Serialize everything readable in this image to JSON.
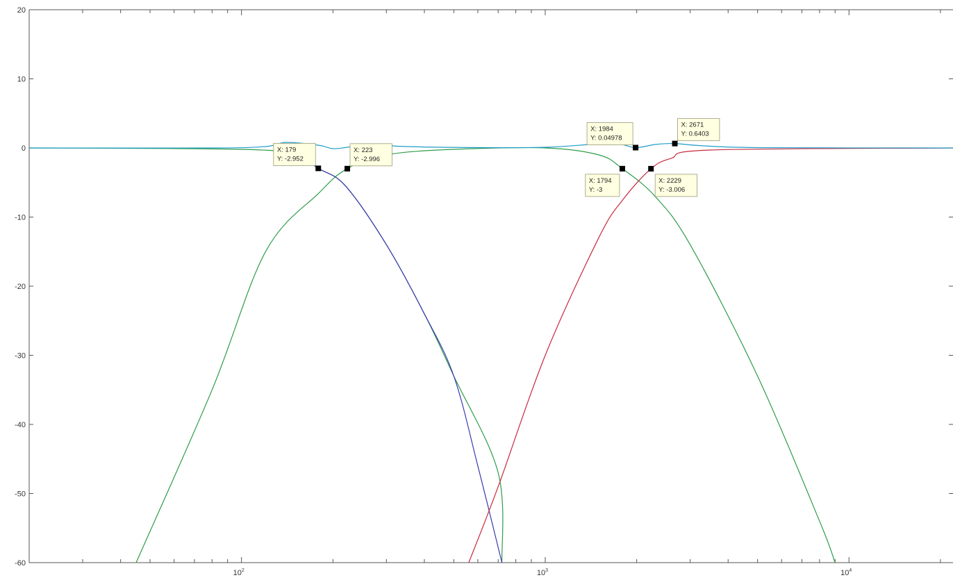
{
  "chart_data": {
    "type": "line",
    "title": "",
    "xlabel": "",
    "ylabel": "",
    "xscale": "log",
    "xlim": [
      20,
      22000
    ],
    "ylim": [
      -60,
      20
    ],
    "grid": false,
    "legend": "none",
    "y_ticks": [
      20,
      10,
      0,
      -10,
      -20,
      -30,
      -40,
      -50,
      -60
    ],
    "x_ticks": [
      {
        "value": 100,
        "base": "10",
        "exp": "2"
      },
      {
        "value": 1000,
        "base": "10",
        "exp": "3"
      },
      {
        "value": 10000,
        "base": "10",
        "exp": "4"
      }
    ],
    "series": [
      {
        "color": "#2e9b4a",
        "points": [
          [
            20,
            0
          ],
          [
            100,
            -0.2
          ],
          [
            150,
            -1.0
          ],
          [
            179,
            -2.952
          ],
          [
            220,
            -5.5
          ],
          [
            300,
            -14
          ],
          [
            400,
            -24
          ],
          [
            500,
            -33
          ],
          [
            700,
            -47
          ],
          [
            720,
            -60
          ]
        ]
      },
      {
        "color": "#2e9b4a",
        "points": [
          [
            45,
            -60
          ],
          [
            80,
            -35
          ],
          [
            120,
            -15
          ],
          [
            180,
            -6.5
          ],
          [
            223,
            -2.996
          ],
          [
            300,
            -1.0
          ],
          [
            500,
            -0.2
          ],
          [
            1000,
            0
          ],
          [
            1500,
            -1.0
          ],
          [
            1794,
            -3
          ],
          [
            2300,
            -7
          ],
          [
            3000,
            -14
          ],
          [
            5000,
            -33
          ],
          [
            8000,
            -54
          ],
          [
            9000,
            -60
          ]
        ]
      },
      {
        "color": "#3a3ab0",
        "points": [
          [
            130,
            0
          ],
          [
            150,
            -0.7
          ],
          [
            179,
            -2.952
          ],
          [
            220,
            -5.5
          ],
          [
            300,
            -14
          ],
          [
            400,
            -24
          ],
          [
            500,
            -33
          ],
          [
            600,
            -46
          ],
          [
            720,
            -60
          ]
        ]
      },
      {
        "color": "#c8283c",
        "points": [
          [
            560,
            -60
          ],
          [
            700,
            -49
          ],
          [
            1000,
            -30
          ],
          [
            1500,
            -13
          ],
          [
            1800,
            -7.5
          ],
          [
            2229,
            -3.006
          ],
          [
            2600,
            -1.5
          ],
          [
            3500,
            -0.3
          ],
          [
            22000,
            0
          ]
        ]
      },
      {
        "color": "#1e9cc8",
        "points": [
          [
            20,
            0
          ],
          [
            80,
            0
          ],
          [
            120,
            0.2
          ],
          [
            140,
            0.8
          ],
          [
            179,
            0.4
          ],
          [
            200,
            -0.1
          ],
          [
            223,
            0.1
          ],
          [
            260,
            0.5
          ],
          [
            350,
            0.2
          ],
          [
            600,
            0.05
          ],
          [
            1000,
            0.1
          ],
          [
            1400,
            0.5
          ],
          [
            1700,
            0.7
          ],
          [
            1984,
            0.04978
          ],
          [
            2300,
            0.5
          ],
          [
            2671,
            0.6403
          ],
          [
            3200,
            0.35
          ],
          [
            5000,
            0.05
          ],
          [
            22000,
            0
          ]
        ]
      }
    ],
    "datatips": [
      {
        "x": 179,
        "y": -2.952,
        "x_label": "X: 179",
        "y_label": "Y: -2.952",
        "side": "upper-left"
      },
      {
        "x": 223,
        "y": -2.996,
        "x_label": "X: 223",
        "y_label": "Y: -2.996",
        "side": "upper-right"
      },
      {
        "x": 1794,
        "y": -3,
        "x_label": "X: 1794",
        "y_label": "Y: -3",
        "side": "lower-left"
      },
      {
        "x": 2229,
        "y": -3.006,
        "x_label": "X: 2229",
        "y_label": "Y: -3.006",
        "side": "lower-right"
      },
      {
        "x": 1984,
        "y": 0.04978,
        "x_label": "X: 1984",
        "y_label": "Y: 0.04978",
        "side": "upper-left"
      },
      {
        "x": 2671,
        "y": 0.6403,
        "x_label": "X: 2671",
        "y_label": "Y: 0.6403",
        "side": "upper-right"
      }
    ]
  }
}
